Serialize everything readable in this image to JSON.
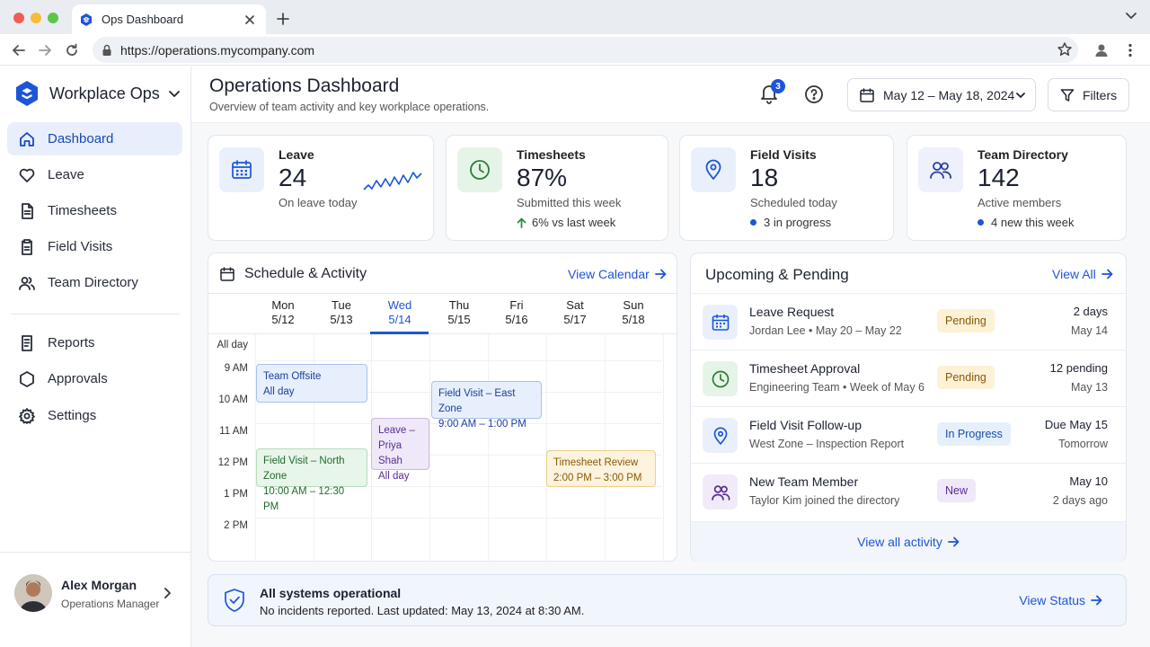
{
  "browser": {
    "tab_title": "Ops Dashboard",
    "url": "https://operations.mycompany.com"
  },
  "sidebar": {
    "workspace": "Workplace Ops",
    "items": [
      {
        "label": "Dashboard",
        "icon": "home-icon",
        "active": true
      },
      {
        "label": "Leave",
        "icon": "heart-icon"
      },
      {
        "label": "Timesheets",
        "icon": "document-icon"
      },
      {
        "label": "Field Visits",
        "icon": "clipboard-icon"
      },
      {
        "label": "Team Directory",
        "icon": "users-icon"
      }
    ],
    "items2": [
      {
        "label": "Reports",
        "icon": "report-icon"
      },
      {
        "label": "Approvals",
        "icon": "hexagon-icon"
      },
      {
        "label": "Settings",
        "icon": "gear-icon"
      }
    ],
    "user": {
      "name": "Alex Morgan",
      "role": "Operations Manager"
    }
  },
  "header": {
    "title": "Operations Dashboard",
    "subtitle": "Overview of team activity and key workplace operations.",
    "notification_count": "3",
    "date_range": "May 12 – May 18, 2024",
    "filters_label": "Filters"
  },
  "stats": [
    {
      "title": "Leave",
      "value": "24",
      "label": "On leave today",
      "icon": "calendar-icon"
    },
    {
      "title": "Timesheets",
      "value": "87%",
      "label": "Submitted this week",
      "note": "6% vs last week",
      "icon": "clock-icon"
    },
    {
      "title": "Field Visits",
      "value": "18",
      "label": "Scheduled today",
      "note": "3 in progress",
      "icon": "map-pin-icon"
    },
    {
      "title": "Team Directory",
      "value": "142",
      "label": "Active members",
      "note": "4 new this week",
      "icon": "users-icon"
    }
  ],
  "schedule": {
    "title": "Schedule & Activity",
    "link": "View Calendar",
    "days": [
      {
        "name": "Mon",
        "date": "5/12"
      },
      {
        "name": "Tue",
        "date": "5/13"
      },
      {
        "name": "Wed",
        "date": "5/14",
        "selected": true
      },
      {
        "name": "Thu",
        "date": "5/15"
      },
      {
        "name": "Fri",
        "date": "5/16"
      },
      {
        "name": "Sat",
        "date": "5/17"
      },
      {
        "name": "Sun",
        "date": "5/18"
      }
    ],
    "times": [
      "All day",
      "9 AM",
      "10 AM",
      "11 AM",
      "12 PM",
      "1 PM",
      "2 PM"
    ],
    "events": [
      {
        "title": "Team Offsite",
        "time": "All day",
        "color": "blue"
      },
      {
        "title": "Field Visit – North Zone",
        "time": "10:00 AM – 12:30 PM",
        "color": "green"
      },
      {
        "title": "Leave –",
        "title2": "Priya Shah",
        "time": "All day",
        "color": "purple"
      },
      {
        "title": "Field Visit – East Zone",
        "time": "9:00 AM – 1:00 PM",
        "color": "blue"
      },
      {
        "title": "Timesheet Review",
        "time": "2:00 PM – 3:00 PM",
        "color": "amber"
      }
    ]
  },
  "upcoming": {
    "title": "Upcoming & Pending",
    "link": "View All",
    "items": [
      {
        "title": "Leave Request",
        "sub": "Jordan Lee  •  May 20 – May 22",
        "status": "Pending",
        "right1": "2 days",
        "right2": "May 14",
        "icon": "calendar-icon"
      },
      {
        "title": "Timesheet Approval",
        "sub": "Engineering Team  •  Week of May 6",
        "status": "Pending",
        "right1": "12 pending",
        "right2": "May 13",
        "icon": "clock-icon"
      },
      {
        "title": "Field Visit Follow-up",
        "sub": "West Zone – Inspection Report",
        "status": "In Progress",
        "right1": "Due May 15",
        "right2": "Tomorrow",
        "icon": "map-pin-icon"
      },
      {
        "title": "New Team Member",
        "sub": "Taylor Kim joined the directory",
        "status": "New",
        "right1": "May 10",
        "right2": "2 days ago",
        "icon": "users-icon"
      }
    ],
    "footer_link": "View all activity"
  },
  "status_bar": {
    "title": "All systems operational",
    "message": "No incidents reported. Last updated: May 13, 2024 at 8:30 AM.",
    "link": "View Status"
  },
  "colors": {
    "accent": "#1d55d8",
    "success": "#2e8b3e",
    "pending": "#fdf1d6"
  }
}
